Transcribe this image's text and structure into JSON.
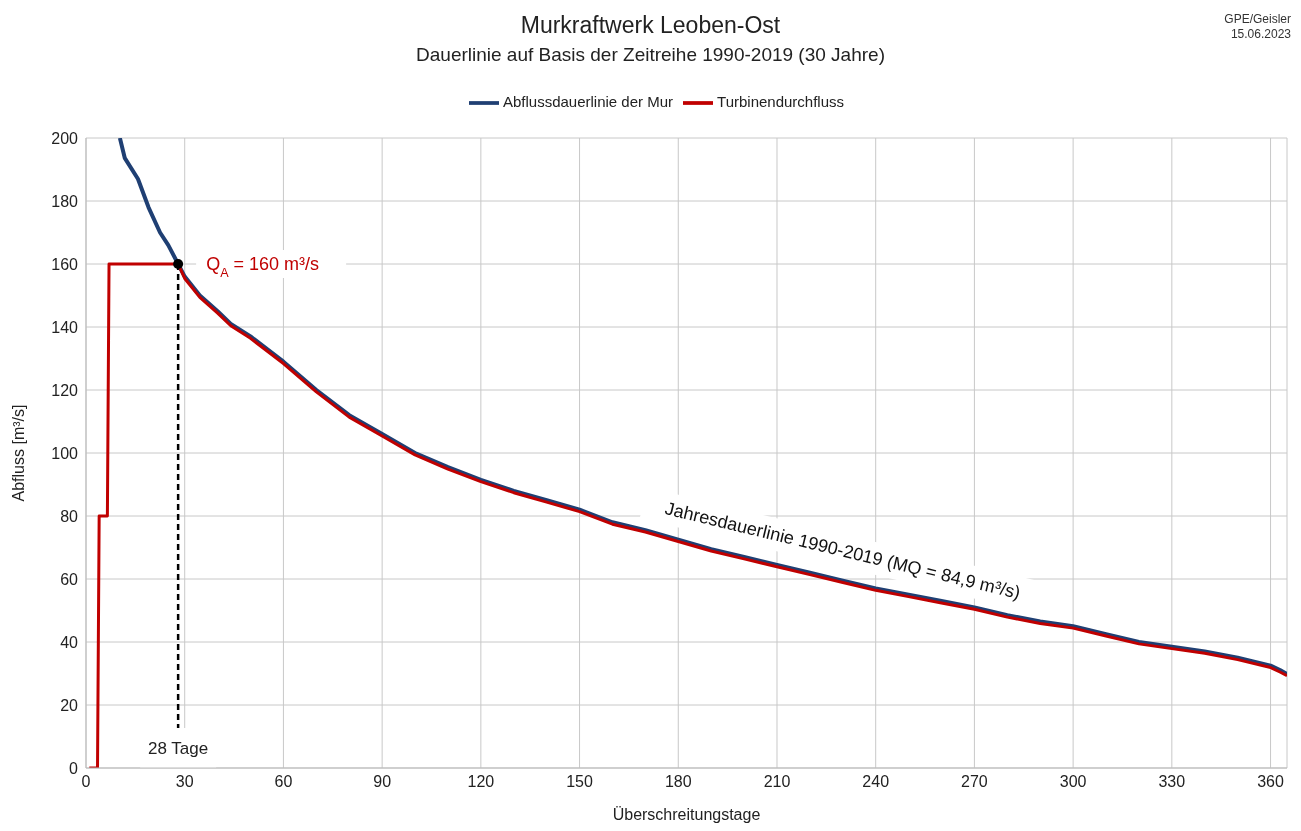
{
  "chart_data": {
    "type": "line",
    "title": "Murkraftwerk Leoben-Ost",
    "subtitle": "Dauerlinie auf Basis der Zeitreihe 1990-2019 (30 Jahre)",
    "xlabel": "Überschreitungstage",
    "ylabel": "Abfluss [m³/s]",
    "xlim": [
      0,
      365
    ],
    "xticks": [
      0,
      30,
      60,
      90,
      120,
      150,
      180,
      210,
      240,
      270,
      300,
      330,
      360
    ],
    "ylim": [
      0,
      200
    ],
    "yticks": [
      0,
      20,
      40,
      60,
      80,
      100,
      120,
      140,
      160,
      180,
      200
    ],
    "grid": true,
    "legend": "top",
    "series": [
      {
        "name": "Abflussdauerlinie der Mur",
        "color": "#1f3f73",
        "x": [
          10.3,
          11.8,
          15.8,
          19,
          22.5,
          25,
          28,
          30,
          34.6,
          40,
          44,
          50,
          60,
          70,
          80,
          90,
          100,
          110,
          120,
          130,
          140,
          150,
          160,
          170,
          180,
          190,
          200,
          210,
          220,
          230,
          240,
          250,
          260,
          270,
          280,
          290,
          300,
          310,
          320,
          330,
          340,
          350,
          360,
          363,
          365
        ],
        "values": [
          200,
          193.6,
          187,
          178,
          170,
          166,
          160,
          156,
          150,
          145,
          141,
          137,
          129,
          120,
          112,
          106,
          100,
          95.5,
          91.5,
          88,
          85,
          82,
          78,
          75.5,
          72.5,
          69.5,
          67,
          64.5,
          62,
          59.5,
          57,
          55,
          53,
          51,
          48.5,
          46.5,
          45,
          42.5,
          40,
          38.5,
          37,
          35,
          32.5,
          31,
          29.8
        ]
      },
      {
        "name": "Turbinendurchfluss",
        "color": "#c00000",
        "x": [
          1,
          3.5,
          4,
          6.5,
          7,
          28,
          30,
          34.6,
          40,
          44,
          50,
          60,
          70,
          80,
          90,
          100,
          110,
          120,
          130,
          140,
          150,
          160,
          170,
          180,
          190,
          200,
          210,
          220,
          230,
          240,
          250,
          260,
          270,
          280,
          290,
          300,
          310,
          320,
          330,
          340,
          350,
          360,
          363,
          365
        ],
        "values": [
          0,
          0,
          80,
          80,
          160,
          160,
          155.4,
          149.4,
          144.4,
          140.4,
          136.4,
          128.4,
          119.4,
          111.4,
          105.4,
          99.4,
          94.9,
          90.9,
          87.4,
          84.4,
          81.4,
          77.4,
          74.9,
          71.9,
          68.9,
          66.4,
          63.9,
          61.4,
          58.9,
          56.4,
          54.4,
          52.4,
          50.4,
          47.9,
          45.9,
          44.4,
          41.9,
          39.4,
          37.9,
          36.4,
          34.4,
          31.9,
          30.4,
          29.3
        ]
      },
      {
        "type": "scatter",
        "color": "#000000",
        "x": [
          28
        ],
        "values": [
          160
        ]
      }
    ],
    "ref_lines": [
      {
        "axis": "x",
        "value": 28,
        "label": "28 Tage",
        "color": "#000000",
        "line_style": "dashed"
      }
    ],
    "annotations": [
      "GPE/Geisler",
      "15.06.2023",
      {
        "text": "Q$_{A}$ = 160 m³/s",
        "x": 28,
        "y": 160
      },
      {
        "text": "Jahresdauerlinie 1990-2019 (MQ = 84,9 m³/s)",
        "x": 230,
        "y": 59.5
      }
    ]
  }
}
